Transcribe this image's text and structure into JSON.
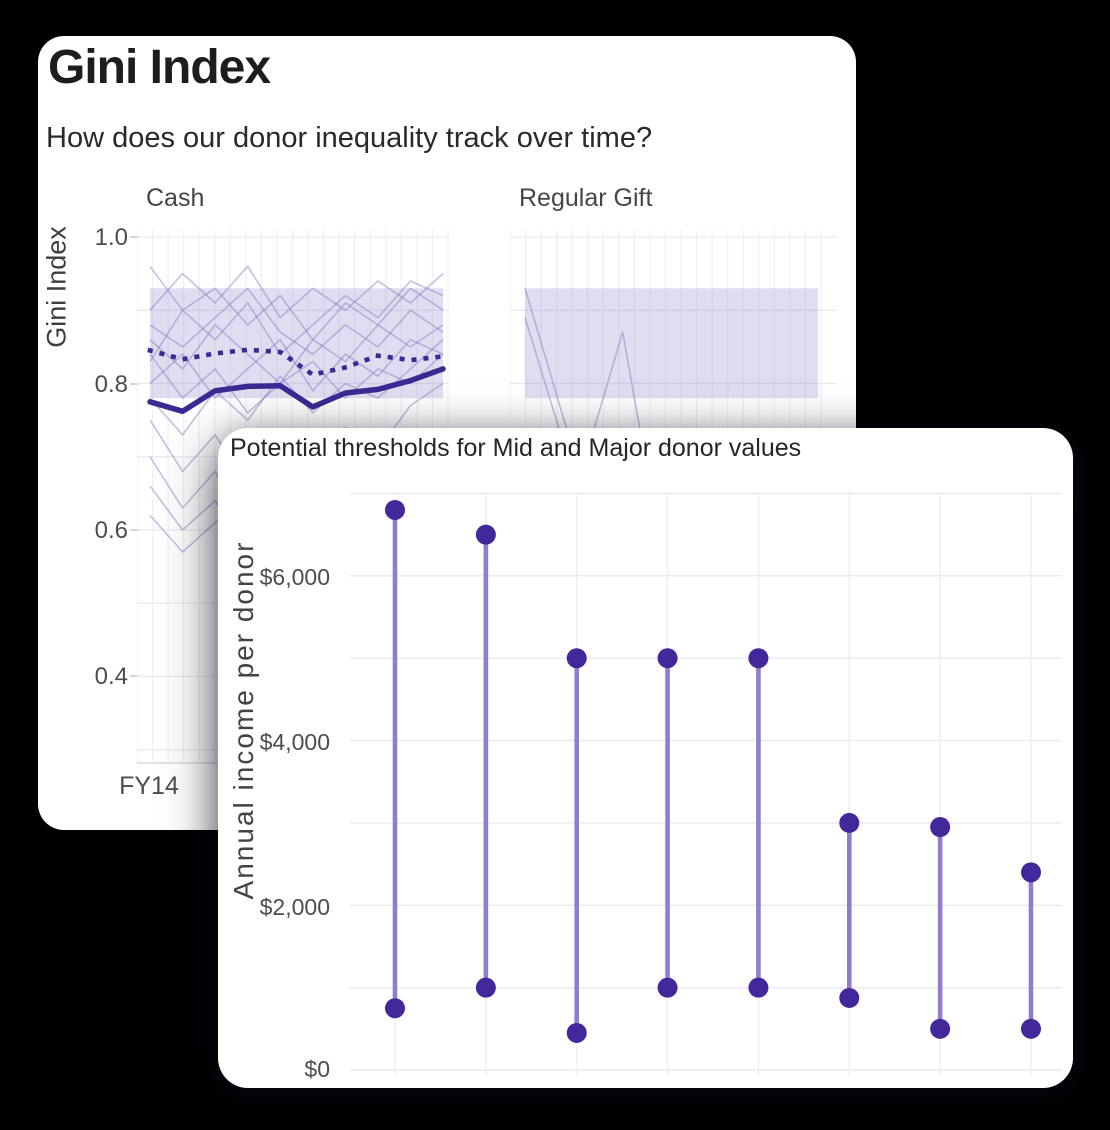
{
  "page": {
    "background": "#000000"
  },
  "gini_card": {
    "title": "Gini Index",
    "subtitle": "How does our donor inequality track over time?",
    "y_axis_label": "Gini Index",
    "y_ticks": [
      "1.0",
      "0.8",
      "0.6",
      "0.4"
    ],
    "x_ticks": [
      "FY14"
    ]
  },
  "threshold_card": {
    "title": "Potential thresholds for Mid and Major donor values",
    "y_axis_label": "Annual income per donor",
    "y_ticks": [
      "$6,000",
      "$4,000",
      "$2,000",
      "$0"
    ]
  },
  "colors": {
    "band": "#8a77c6",
    "thin_line": "#7a68bd",
    "bold_line": "#3a2a93",
    "dotted_line": "#3a2a93",
    "dumbbell_line": "#7f6ccb",
    "dumbbell_dot": "#43289c",
    "grid": "#e9e9ee",
    "grid_light": "#f0f0f3",
    "axis_line": "#dadade"
  },
  "chart_data": [
    {
      "type": "line",
      "title": "Gini Index",
      "subtitle": "How does our donor inequality track over time?",
      "ylabel": "Gini Index",
      "ylim": [
        0.3,
        1.0
      ],
      "y_tick_step": 0.2,
      "n_points": 10,
      "x_ticks_visible": [
        "FY14"
      ],
      "legend": "none",
      "grid": "on",
      "facets": [
        {
          "label": "Cash",
          "band": {
            "low": 0.78,
            "high": 0.93
          },
          "median_dotted": [
            0.845,
            0.833,
            0.841,
            0.846,
            0.843,
            0.812,
            0.822,
            0.838,
            0.832,
            0.837
          ],
          "highlight_solid": [
            0.775,
            0.762,
            0.79,
            0.796,
            0.797,
            0.768,
            0.787,
            0.792,
            0.804,
            0.82
          ],
          "background_series": [
            [
              0.9,
              0.95,
              0.91,
              0.96,
              0.89,
              0.93,
              0.9,
              0.94,
              0.91,
              0.95
            ],
            [
              0.96,
              0.9,
              0.93,
              0.88,
              0.92,
              0.86,
              0.91,
              0.88,
              0.93,
              0.9
            ],
            [
              0.83,
              0.9,
              0.86,
              0.91,
              0.84,
              0.88,
              0.92,
              0.89,
              0.94,
              0.92
            ],
            [
              0.86,
              0.82,
              0.88,
              0.84,
              0.8,
              0.86,
              0.83,
              0.88,
              0.85,
              0.88
            ],
            [
              0.8,
              0.84,
              0.78,
              0.82,
              0.86,
              0.79,
              0.84,
              0.81,
              0.86,
              0.84
            ],
            [
              0.84,
              0.78,
              0.82,
              0.76,
              0.8,
              0.83,
              0.78,
              0.82,
              0.8,
              0.84
            ],
            [
              0.78,
              0.73,
              0.79,
              0.75,
              0.81,
              0.76,
              0.8,
              0.78,
              0.82,
              0.86
            ],
            [
              0.75,
              0.68,
              0.73,
              0.66,
              0.71,
              0.68,
              0.74,
              0.71,
              0.77,
              0.8
            ],
            [
              0.7,
              0.63,
              0.68,
              0.6,
              0.66,
              0.7,
              0.64,
              0.72,
              0.68,
              0.74
            ],
            [
              0.66,
              0.6,
              0.64,
              0.57,
              0.62,
              0.58,
              0.66,
              0.63,
              0.7,
              0.72
            ],
            [
              0.62,
              0.57,
              0.61,
              0.64,
              0.58,
              0.63,
              0.6,
              0.66,
              0.64,
              0.68
            ],
            [
              0.88,
              0.85,
              0.89,
              0.93,
              0.87,
              0.84,
              0.88,
              0.85,
              0.9,
              0.87
            ]
          ]
        },
        {
          "label": "Regular Gift",
          "band": {
            "low": 0.78,
            "high": 0.93
          },
          "median_dotted": null,
          "highlight_solid": null,
          "background_series": [
            [
              0.89,
              0.745,
              0.6,
              0.5,
              0.44,
              0.4,
              0.38,
              0.36,
              0.35,
              0.34
            ],
            [
              0.93,
              0.78,
              0.63,
              0.52,
              0.46,
              0.42,
              0.4,
              0.38,
              0.36,
              0.35
            ],
            [
              0.7,
              0.55,
              0.72,
              0.87,
              0.62,
              0.5,
              0.44,
              0.41,
              0.39,
              0.37
            ]
          ]
        }
      ]
    },
    {
      "type": "dumbbell",
      "title": "Potential thresholds for Mid and Major donor values",
      "ylabel": "Annual income per donor",
      "ylim": [
        0,
        7000
      ],
      "y_tick_step": 2000,
      "grid": "on",
      "pairs": [
        {
          "low": 750,
          "high": 6800
        },
        {
          "low": 1000,
          "high": 6500
        },
        {
          "low": 450,
          "high": 5000
        },
        {
          "low": 1000,
          "high": 5000
        },
        {
          "low": 1000,
          "high": 5000
        },
        {
          "low": 875,
          "high": 3000
        },
        {
          "low": 500,
          "high": 2950
        },
        {
          "low": 500,
          "high": 2400
        }
      ]
    }
  ]
}
